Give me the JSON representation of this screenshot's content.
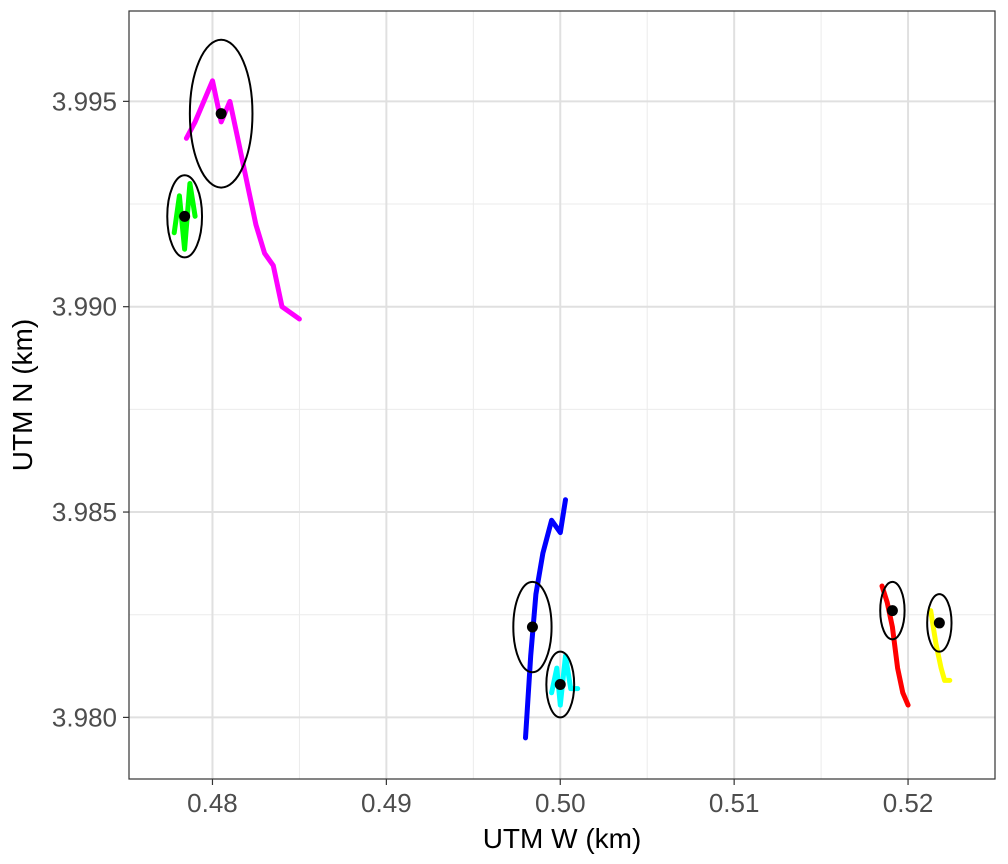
{
  "chart_data": {
    "type": "scatter",
    "title": "",
    "xlabel": "UTM W (km)",
    "ylabel": "UTM N (km)",
    "xlim": [
      0.4752,
      0.525
    ],
    "ylim": [
      3.9785,
      3.9972
    ],
    "grid": true,
    "legend": "none",
    "x_ticks": [
      0.48,
      0.49,
      0.5,
      0.51,
      0.52
    ],
    "x_tick_labels": [
      "0.48",
      "0.49",
      "0.50",
      "0.51",
      "0.52"
    ],
    "y_ticks": [
      3.98,
      3.985,
      3.99,
      3.995
    ],
    "y_tick_labels": [
      "3.980",
      "3.985",
      "3.990",
      "3.995"
    ],
    "series": [
      {
        "color": "#FF00FF",
        "center": [
          0.4805,
          3.9947
        ],
        "ellipse_radius": [
          0.0018,
          0.0018
        ],
        "track": [
          [
            0.4785,
            3.9941
          ],
          [
            0.479,
            3.9945
          ],
          [
            0.4795,
            3.995
          ],
          [
            0.48,
            3.9955
          ],
          [
            0.4805,
            3.9945
          ],
          [
            0.481,
            3.995
          ],
          [
            0.4815,
            3.994
          ],
          [
            0.482,
            3.993
          ],
          [
            0.4825,
            3.992
          ],
          [
            0.483,
            3.9913
          ],
          [
            0.4835,
            3.991
          ],
          [
            0.484,
            3.99
          ],
          [
            0.485,
            3.9897
          ]
        ]
      },
      {
        "color": "#00FF00",
        "center": [
          0.4784,
          3.9922
        ],
        "ellipse_radius": [
          0.001,
          0.001
        ],
        "track": [
          [
            0.4778,
            3.9918
          ],
          [
            0.4781,
            3.9927
          ],
          [
            0.4784,
            3.9914
          ],
          [
            0.4787,
            3.993
          ],
          [
            0.479,
            3.9922
          ]
        ]
      },
      {
        "color": "#0000FF",
        "center": [
          0.4984,
          3.9822
        ],
        "ellipse_radius": [
          0.0011,
          0.0011
        ],
        "track": [
          [
            0.498,
            3.9795
          ],
          [
            0.4983,
            3.9815
          ],
          [
            0.4986,
            3.983
          ],
          [
            0.499,
            3.984
          ],
          [
            0.4995,
            3.9848
          ],
          [
            0.5,
            3.9845
          ],
          [
            0.5003,
            3.9853
          ]
        ]
      },
      {
        "color": "#00FFFF",
        "center": [
          0.5,
          3.9808
        ],
        "ellipse_radius": [
          0.0008,
          0.0008
        ],
        "track": [
          [
            0.4995,
            3.9806
          ],
          [
            0.4998,
            3.9812
          ],
          [
            0.5,
            3.9803
          ],
          [
            0.5003,
            3.9815
          ],
          [
            0.5006,
            3.9807
          ],
          [
            0.501,
            3.9807
          ]
        ]
      },
      {
        "color": "#FF0000",
        "center": [
          0.5191,
          3.9826
        ],
        "ellipse_radius": [
          0.0007,
          0.0007
        ],
        "track": [
          [
            0.5185,
            3.9832
          ],
          [
            0.5188,
            3.9828
          ],
          [
            0.5191,
            3.9822
          ],
          [
            0.5194,
            3.9812
          ],
          [
            0.5197,
            3.9806
          ],
          [
            0.52,
            3.9803
          ]
        ]
      },
      {
        "color": "#FFFF00",
        "center": [
          0.5218,
          3.9823
        ],
        "ellipse_radius": [
          0.0007,
          0.0007
        ],
        "track": [
          [
            0.5213,
            3.9826
          ],
          [
            0.5216,
            3.9818
          ],
          [
            0.5219,
            3.9812
          ],
          [
            0.5221,
            3.9809
          ],
          [
            0.5224,
            3.9809
          ]
        ]
      }
    ]
  }
}
